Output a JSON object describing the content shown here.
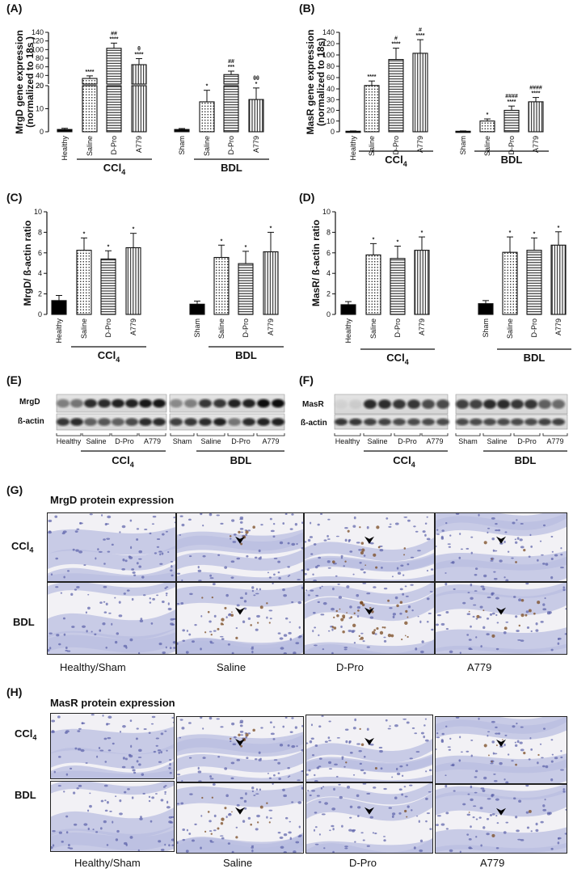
{
  "panels": {
    "A": {
      "label": "(A)",
      "ylabel_line1": "MrgD gene expression",
      "ylabel_line2": "(normalized to 18s )"
    },
    "B": {
      "label": "(B)",
      "ylabel_line1": "MasR gene expression",
      "ylabel_line2": "(normalized to 18s)"
    },
    "C": {
      "label": "(C)",
      "ylabel": "MrgD/ ß-actin ratio"
    },
    "D": {
      "label": "(D)",
      "ylabel": "MasR/ ß-actin ratio"
    },
    "E": {
      "label": "(E)",
      "band_labels": [
        "MrgD",
        "ß-actin"
      ]
    },
    "F": {
      "label": "(F)",
      "band_labels": [
        "MasR",
        "ß-actin"
      ]
    },
    "G": {
      "label": "(G)",
      "title": "MrgD protein expression"
    },
    "H": {
      "label": "(H)",
      "title": "MasR protein expression"
    }
  },
  "groups": {
    "ccl4": {
      "name": "CCl",
      "sub": "4",
      "control": "Healthy",
      "treatments": [
        "Saline",
        "D-Pro",
        "A779"
      ]
    },
    "bdl": {
      "name": "BDL",
      "control": "Sham",
      "treatments": [
        "Saline",
        "D-Pro",
        "A779"
      ]
    }
  },
  "blot_lane_labels": [
    "Healthy",
    "Saline",
    "D-Pro",
    "A779",
    "Sham",
    "Saline",
    "D-Pro",
    "A779"
  ],
  "ihc": {
    "row_labels": {
      "ccl4_name": "CCl",
      "ccl4_sub": "4",
      "bdl": "BDL"
    },
    "column_labels": [
      "Healthy/Sham",
      "Saline",
      "D-Pro",
      "A779"
    ]
  },
  "colors": {
    "bar_fill": "#ffffff",
    "control_fill": "#000000",
    "stain_blue": "#8c93c8",
    "stain_brown": "#7a4a20"
  },
  "chart_data": [
    {
      "panel": "A",
      "type": "bar",
      "categories": [
        "Healthy",
        "Saline",
        "D-Pro",
        "A779",
        "Sham",
        "Saline",
        "D-Pro",
        "A779"
      ],
      "values": [
        1,
        33,
        103,
        65,
        1,
        13,
        42,
        14
      ],
      "errors": [
        0.5,
        6,
        12,
        14,
        0.4,
        5,
        8,
        5
      ],
      "patterns": [
        "solid",
        "dots",
        "hlines",
        "vlines",
        "solid",
        "dots",
        "hlines",
        "vlines"
      ],
      "annotations": [
        "",
        "****",
        "##\n****",
        "θ\n****",
        "",
        "*",
        "##\n***",
        "θθ\n*"
      ],
      "yaxis": "broken",
      "ylim_lower": [
        0,
        20
      ],
      "yticks_lower": [
        0,
        10,
        20
      ],
      "ylim_upper": [
        20,
        140
      ],
      "yticks_upper": [
        20,
        40,
        60,
        80,
        100,
        120,
        140
      ],
      "ylabel": "MrgD gene expression (normalized to 18s )"
    },
    {
      "panel": "B",
      "type": "bar",
      "categories": [
        "Healthy",
        "Saline",
        "D-Pro",
        "A779",
        "Sham",
        "Saline",
        "D-Pro",
        "A779"
      ],
      "values": [
        0.5,
        46,
        92,
        103,
        0.5,
        10,
        20,
        28
      ],
      "errors": [
        0.3,
        8,
        20,
        24,
        0.3,
        2,
        4,
        4
      ],
      "patterns": [
        "solid",
        "dots",
        "hlines",
        "vlines",
        "solid",
        "dots",
        "hlines",
        "vlines"
      ],
      "annotations": [
        "",
        "****",
        "#\n****",
        "#\n****",
        "",
        "*",
        "####\n****",
        "####\n****"
      ],
      "ylim": [
        0,
        140
      ],
      "yticks": [
        0,
        10,
        20,
        30,
        40,
        60,
        80,
        100,
        120,
        140
      ],
      "ylabel": "MasR gene expression (normalized to 18s)"
    },
    {
      "panel": "C",
      "type": "bar",
      "categories": [
        "Healthy",
        "Saline",
        "D-Pro",
        "A779",
        "Sham",
        "Saline",
        "D-Pro",
        "A779"
      ],
      "values": [
        1.35,
        6.25,
        5.4,
        6.5,
        1.0,
        5.55,
        4.95,
        6.1
      ],
      "errors": [
        0.5,
        1.2,
        0.8,
        1.4,
        0.3,
        1.2,
        1.2,
        1.9
      ],
      "patterns": [
        "solid",
        "dots",
        "hlines",
        "vlines",
        "solid",
        "dots",
        "hlines",
        "vlines"
      ],
      "annotations": [
        "",
        "*",
        "*",
        "*",
        "",
        "*",
        "*",
        "*"
      ],
      "ylim": [
        0,
        10
      ],
      "yticks": [
        0,
        2,
        4,
        6,
        8,
        10
      ],
      "ylabel": "MrgD/ ß-actin ratio"
    },
    {
      "panel": "D",
      "type": "bar",
      "categories": [
        "Healthy",
        "Saline",
        "D-Pro",
        "A779",
        "Sham",
        "Saline",
        "D-Pro",
        "A779"
      ],
      "values": [
        0.95,
        5.8,
        5.45,
        6.25,
        1.05,
        6.05,
        6.25,
        6.75
      ],
      "errors": [
        0.3,
        1.1,
        1.2,
        1.3,
        0.3,
        1.5,
        1.2,
        1.3
      ],
      "patterns": [
        "solid",
        "dots",
        "hlines",
        "vlines",
        "solid",
        "dots",
        "hlines",
        "vlines"
      ],
      "annotations": [
        "",
        "*",
        "*",
        "*",
        "",
        "*",
        "*",
        "*"
      ],
      "ylim": [
        0,
        10
      ],
      "yticks": [
        0,
        2,
        4,
        6,
        8,
        10
      ],
      "ylabel": "MasR/ ß-actin ratio"
    }
  ]
}
